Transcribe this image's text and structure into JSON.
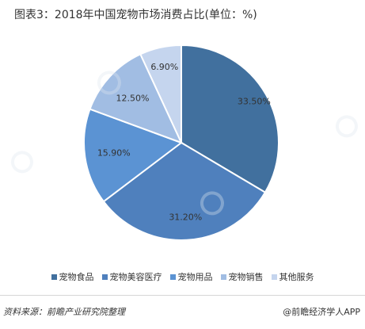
{
  "title": "图表3：2018年中国宠物市场消费占比(单位：%)",
  "footer": {
    "source": "资料来源：前瞻产业研究院整理",
    "brand": "@前瞻经济学人APP"
  },
  "chart_data": {
    "type": "pie",
    "title": "图表3：2018年中国宠物市场消费占比(单位：%)",
    "categories": [
      "宠物食品",
      "宠物美容医疗",
      "宠物用品",
      "宠物销售",
      "其他服务"
    ],
    "values": [
      33.5,
      31.2,
      15.9,
      12.5,
      6.9
    ],
    "data_labels": [
      "33.50%",
      "31.20%",
      "15.90%",
      "12.50%",
      "6.90%"
    ],
    "colors": [
      "#41709e",
      "#4f80bd",
      "#5b93d3",
      "#a1bde3",
      "#c5d5ee"
    ],
    "legend_position": "bottom",
    "start_angle_deg": 0,
    "direction": "clockwise"
  }
}
